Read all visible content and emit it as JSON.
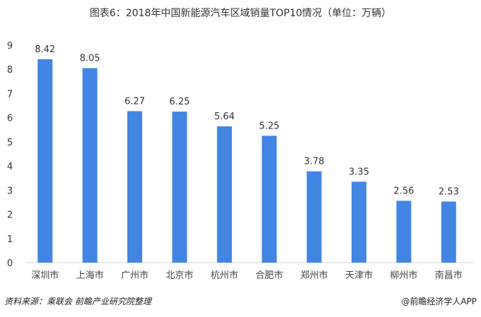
{
  "chart_data": {
    "type": "bar",
    "title": "图表6：2018年中国新能源汽车区域销量TOP10情况（单位：万辆）",
    "categories": [
      "深圳市",
      "上海市",
      "广州市",
      "北京市",
      "杭州市",
      "合肥市",
      "郑州市",
      "天津市",
      "柳州市",
      "南昌市"
    ],
    "values": [
      8.42,
      8.05,
      6.27,
      6.25,
      5.64,
      5.25,
      3.78,
      3.35,
      2.56,
      2.53
    ],
    "value_labels": [
      "8.42",
      "8.05",
      "6.27",
      "6.25",
      "5.64",
      "5.25",
      "3.78",
      "3.35",
      "2.56",
      "2.53"
    ],
    "ylim": [
      0,
      9
    ],
    "yticks": [
      "0",
      "1",
      "2",
      "3",
      "4",
      "5",
      "6",
      "7",
      "8",
      "9"
    ],
    "xlabel": "",
    "ylabel": "",
    "grid": false,
    "legend": "none",
    "bar_color": "#4285e3"
  },
  "footer": {
    "source": "资料来源：乘联会 前瞻产业研究院整理",
    "credit": "@前瞻经济学人APP"
  }
}
